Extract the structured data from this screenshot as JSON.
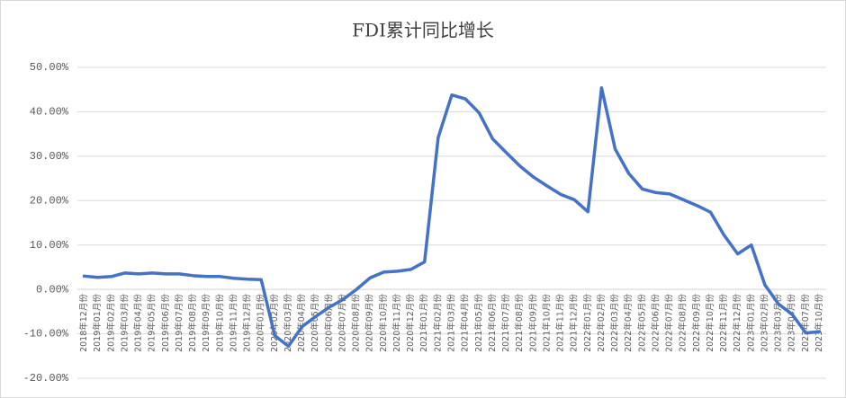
{
  "chart_data": {
    "type": "line",
    "title": "FDI累计同比增长",
    "categories": [
      "2018年12月份",
      "2019年01月份",
      "2019年02月份",
      "2019年03月份",
      "2019年04月份",
      "2019年05月份",
      "2019年06月份",
      "2019年07月份",
      "2019年08月份",
      "2019年09月份",
      "2019年10月份",
      "2019年11月份",
      "2019年12月份",
      "2020年01月份",
      "2020年02月份",
      "2020年03月份",
      "2020年04月份",
      "2020年05月份",
      "2020年06月份",
      "2020年07月份",
      "2020年08月份",
      "2020年09月份",
      "2020年10月份",
      "2020年11月份",
      "2020年12月份",
      "2021年01月份",
      "2021年02月份",
      "2021年03月份",
      "2021年04月份",
      "2021年05月份",
      "2021年06月份",
      "2021年07月份",
      "2021年08月份",
      "2021年09月份",
      "2021年10月份",
      "2021年11月份",
      "2021年12月份",
      "2022年01月份",
      "2022年02月份",
      "2022年03月份",
      "2022年04月份",
      "2022年05月份",
      "2022年06月份",
      "2022年07月份",
      "2022年08月份",
      "2022年09月份",
      "2022年10月份",
      "2022年11月份",
      "2022年12月份",
      "2023年01月份",
      "2023年02月份",
      "2023年03月份",
      "2023年04月份",
      "2023年07月份",
      "2023年10月份"
    ],
    "series": [
      {
        "name": "FDI累计同比增长",
        "color": "#4472c4",
        "values": [
          3.0,
          2.7,
          2.9,
          3.7,
          3.5,
          3.7,
          3.5,
          3.5,
          3.1,
          2.9,
          2.9,
          2.5,
          2.3,
          2.2,
          -10.4,
          -12.8,
          -8.4,
          -6.1,
          -4.0,
          -2.3,
          0.0,
          2.6,
          3.9,
          4.1,
          4.5,
          6.2,
          34.2,
          43.8,
          42.9,
          39.8,
          33.9,
          30.8,
          27.8,
          25.3,
          23.3,
          21.4,
          20.2,
          17.5,
          45.4,
          31.6,
          26.1,
          22.6,
          21.8,
          21.5,
          20.2,
          18.9,
          17.4,
          12.2,
          8.0,
          10.0,
          1.0,
          -3.3,
          -5.6,
          -9.8,
          -9.5
        ]
      }
    ],
    "ylim": [
      -20,
      50
    ],
    "yticks": [
      {
        "value": -20,
        "label": "-20.00%"
      },
      {
        "value": -10,
        "label": "-10.00%"
      },
      {
        "value": 0,
        "label": "0.00%"
      },
      {
        "value": 10,
        "label": "10.00%"
      },
      {
        "value": 20,
        "label": "20.00%"
      },
      {
        "value": 30,
        "label": "30.00%"
      },
      {
        "value": 40,
        "label": "40.00%"
      },
      {
        "value": 50,
        "label": "50.00%"
      }
    ],
    "grid": true
  }
}
